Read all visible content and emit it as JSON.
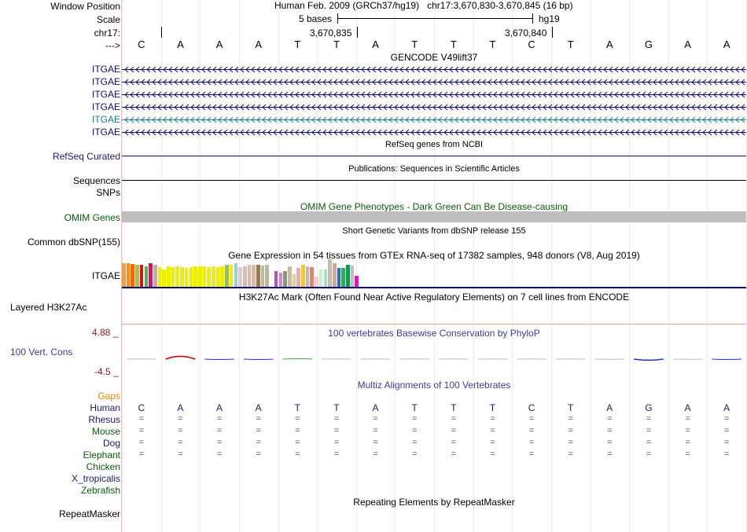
{
  "ruler": {
    "window_position_label": "Window Position",
    "scale_label": "Scale",
    "chrom_label": "chr17:",
    "arrow_label": "--->",
    "assembly_text": "Human Feb. 2009 (GRCh37/hg19)",
    "position_text": "chr17:3,670,830-3,670,845 (16 bp)",
    "scale_text": "5 bases",
    "scale_db": "hg19",
    "tick1": "3,670,835",
    "tick2": "3,670,840"
  },
  "sequence": [
    "C",
    "A",
    "A",
    "A",
    "T",
    "T",
    "A",
    "T",
    "T",
    "T",
    "C",
    "T",
    "A",
    "G",
    "A",
    "A"
  ],
  "gencode": {
    "title": "GENCODE V49lift37",
    "genes": [
      "ITGAE",
      "ITGAE",
      "ITGAE",
      "ITGAE",
      "ITGAE",
      "ITGAE"
    ],
    "colors": [
      "#0c0c78",
      "#0c0c78",
      "#0c0c78",
      "#0c0c78",
      "#167f8a",
      "#0c0c78"
    ]
  },
  "refseq": {
    "label": "RefSeq Curated",
    "title": "RefSeq genes from NCBI"
  },
  "publications": {
    "label": "Sequences",
    "title": "Publications: Sequences in Scientific Articles"
  },
  "snps": {
    "label": "SNPs"
  },
  "omim": {
    "label": "OMIM Genes",
    "title": "OMIM Gene Phenotypes - Dark Green Can Be Disease-causing"
  },
  "dbsnp": {
    "label": "Common dbSNP(155)",
    "title": "Short Genetic Variants from dbSNP release 155"
  },
  "gtex": {
    "title": "Gene Expression in 54 tissues from GTEx RNA-seq of 17382 samples, 948 donors (V8, Aug 2019)",
    "label": "ITGAE",
    "bars": [
      {
        "v": 30,
        "c": "#ff9933"
      },
      {
        "v": 30,
        "c": "#ff8c1a"
      },
      {
        "v": 29,
        "c": "#ff6600"
      },
      {
        "v": 28,
        "c": "#aabb66"
      },
      {
        "v": 28,
        "c": "#dd1111"
      },
      {
        "v": 26,
        "c": "#66aa55"
      },
      {
        "v": 30,
        "c": "#dd1166"
      },
      {
        "v": 28,
        "c": "#ccaa99"
      },
      {
        "v": 25,
        "c": "#eeee00"
      },
      {
        "v": 22,
        "c": "#eeee00"
      },
      {
        "v": 26,
        "c": "#eeee00"
      },
      {
        "v": 25,
        "c": "#eeee00"
      },
      {
        "v": 26,
        "c": "#eeee00"
      },
      {
        "v": 25,
        "c": "#eeee00"
      },
      {
        "v": 24,
        "c": "#eeee00"
      },
      {
        "v": 25,
        "c": "#eeee00"
      },
      {
        "v": 26,
        "c": "#eeee00"
      },
      {
        "v": 26,
        "c": "#eeee00"
      },
      {
        "v": 26,
        "c": "#eeee00"
      },
      {
        "v": 25,
        "c": "#eeee00"
      },
      {
        "v": 26,
        "c": "#eeee00"
      },
      {
        "v": 25,
        "c": "#eeee00"
      },
      {
        "v": 26,
        "c": "#eeee00"
      },
      {
        "v": 28,
        "c": "#99bb66"
      },
      {
        "v": 28,
        "c": "#eeee00"
      },
      {
        "v": 30,
        "c": "#99ccdd"
      },
      {
        "v": 25,
        "c": "#ddcccc"
      },
      {
        "v": 26,
        "c": "#ddbbaa"
      },
      {
        "v": 28,
        "c": "#ddbbaa"
      },
      {
        "v": 28,
        "c": "#ddbbaa"
      },
      {
        "v": 28,
        "c": "#997755"
      },
      {
        "v": 27,
        "c": "#bbbb99"
      },
      {
        "v": 28,
        "c": "#bbbb99"
      },
      {
        "v": 0,
        "c": "#ffffff"
      },
      {
        "v": 20,
        "c": "#aa55cc"
      },
      {
        "v": 18,
        "c": "#cc88cc"
      },
      {
        "v": 20,
        "c": "#889977"
      },
      {
        "v": 26,
        "c": "#ccbbaa"
      },
      {
        "v": 16,
        "c": "#eecc99"
      },
      {
        "v": 24,
        "c": "#eeaaaa"
      },
      {
        "v": 28,
        "c": "#ffcc00"
      },
      {
        "v": 26,
        "c": "#bbbbbb"
      },
      {
        "v": 25,
        "c": "#dd8877"
      },
      {
        "v": 13,
        "c": "#ffcccc"
      },
      {
        "v": 22,
        "c": "#cceecc"
      },
      {
        "v": 22,
        "c": "#aaddcc"
      },
      {
        "v": 35,
        "c": "#ccbbaa"
      },
      {
        "v": 30,
        "c": "#ccaa99"
      },
      {
        "v": 24,
        "c": "#3366cc"
      },
      {
        "v": 24,
        "c": "#33aa55"
      },
      {
        "v": 28,
        "c": "#119955"
      },
      {
        "v": 27,
        "c": "#ccbbbb"
      },
      {
        "v": 14,
        "c": "#ff00dd"
      },
      {
        "v": 0,
        "c": "#ffffff"
      }
    ]
  },
  "h3k27ac": {
    "label": "Layered H3K27Ac",
    "title": "H3K27Ac Mark (Often Found Near Active Regulatory Elements) on 7 cell lines from ENCODE"
  },
  "conservation": {
    "title": "100 vertebrates Basewise Conservation by PhyloP",
    "label": "100 Vert. Cons",
    "max_label": "4.88 _",
    "min_label": "-4.5 _",
    "scores": [
      0.1,
      1.6,
      -0.2,
      -0.2,
      0.2,
      0.1,
      0.1,
      0.1,
      0.1,
      0.1,
      0.1,
      0.1,
      -0.1,
      -0.6,
      -0.1,
      -0.2
    ]
  },
  "multiz": {
    "title": "Multiz Alignments of 100 Vertebrates",
    "gaps_label": "Gaps",
    "species": [
      {
        "name": "Human",
        "color": "#191970",
        "row": "seq"
      },
      {
        "name": "Rhesus",
        "color": "#191970",
        "row": "eq"
      },
      {
        "name": "Mouse",
        "color": "#0a5c0a",
        "row": "eq"
      },
      {
        "name": "Dog",
        "color": "#191970",
        "row": "eq"
      },
      {
        "name": "Elephant",
        "color": "#0a5c0a",
        "row": "eq"
      },
      {
        "name": "Chicken",
        "color": "#0a5c0a",
        "row": "none"
      },
      {
        "name": "X_tropicalis",
        "color": "#191970",
        "row": "none"
      },
      {
        "name": "Zebrafish",
        "color": "#0a5c0a",
        "row": "none"
      }
    ],
    "equals_symbol": "="
  },
  "repeatmasker": {
    "label": "RepeatMasker",
    "title": "Repeating Elements by RepeatMasker"
  }
}
